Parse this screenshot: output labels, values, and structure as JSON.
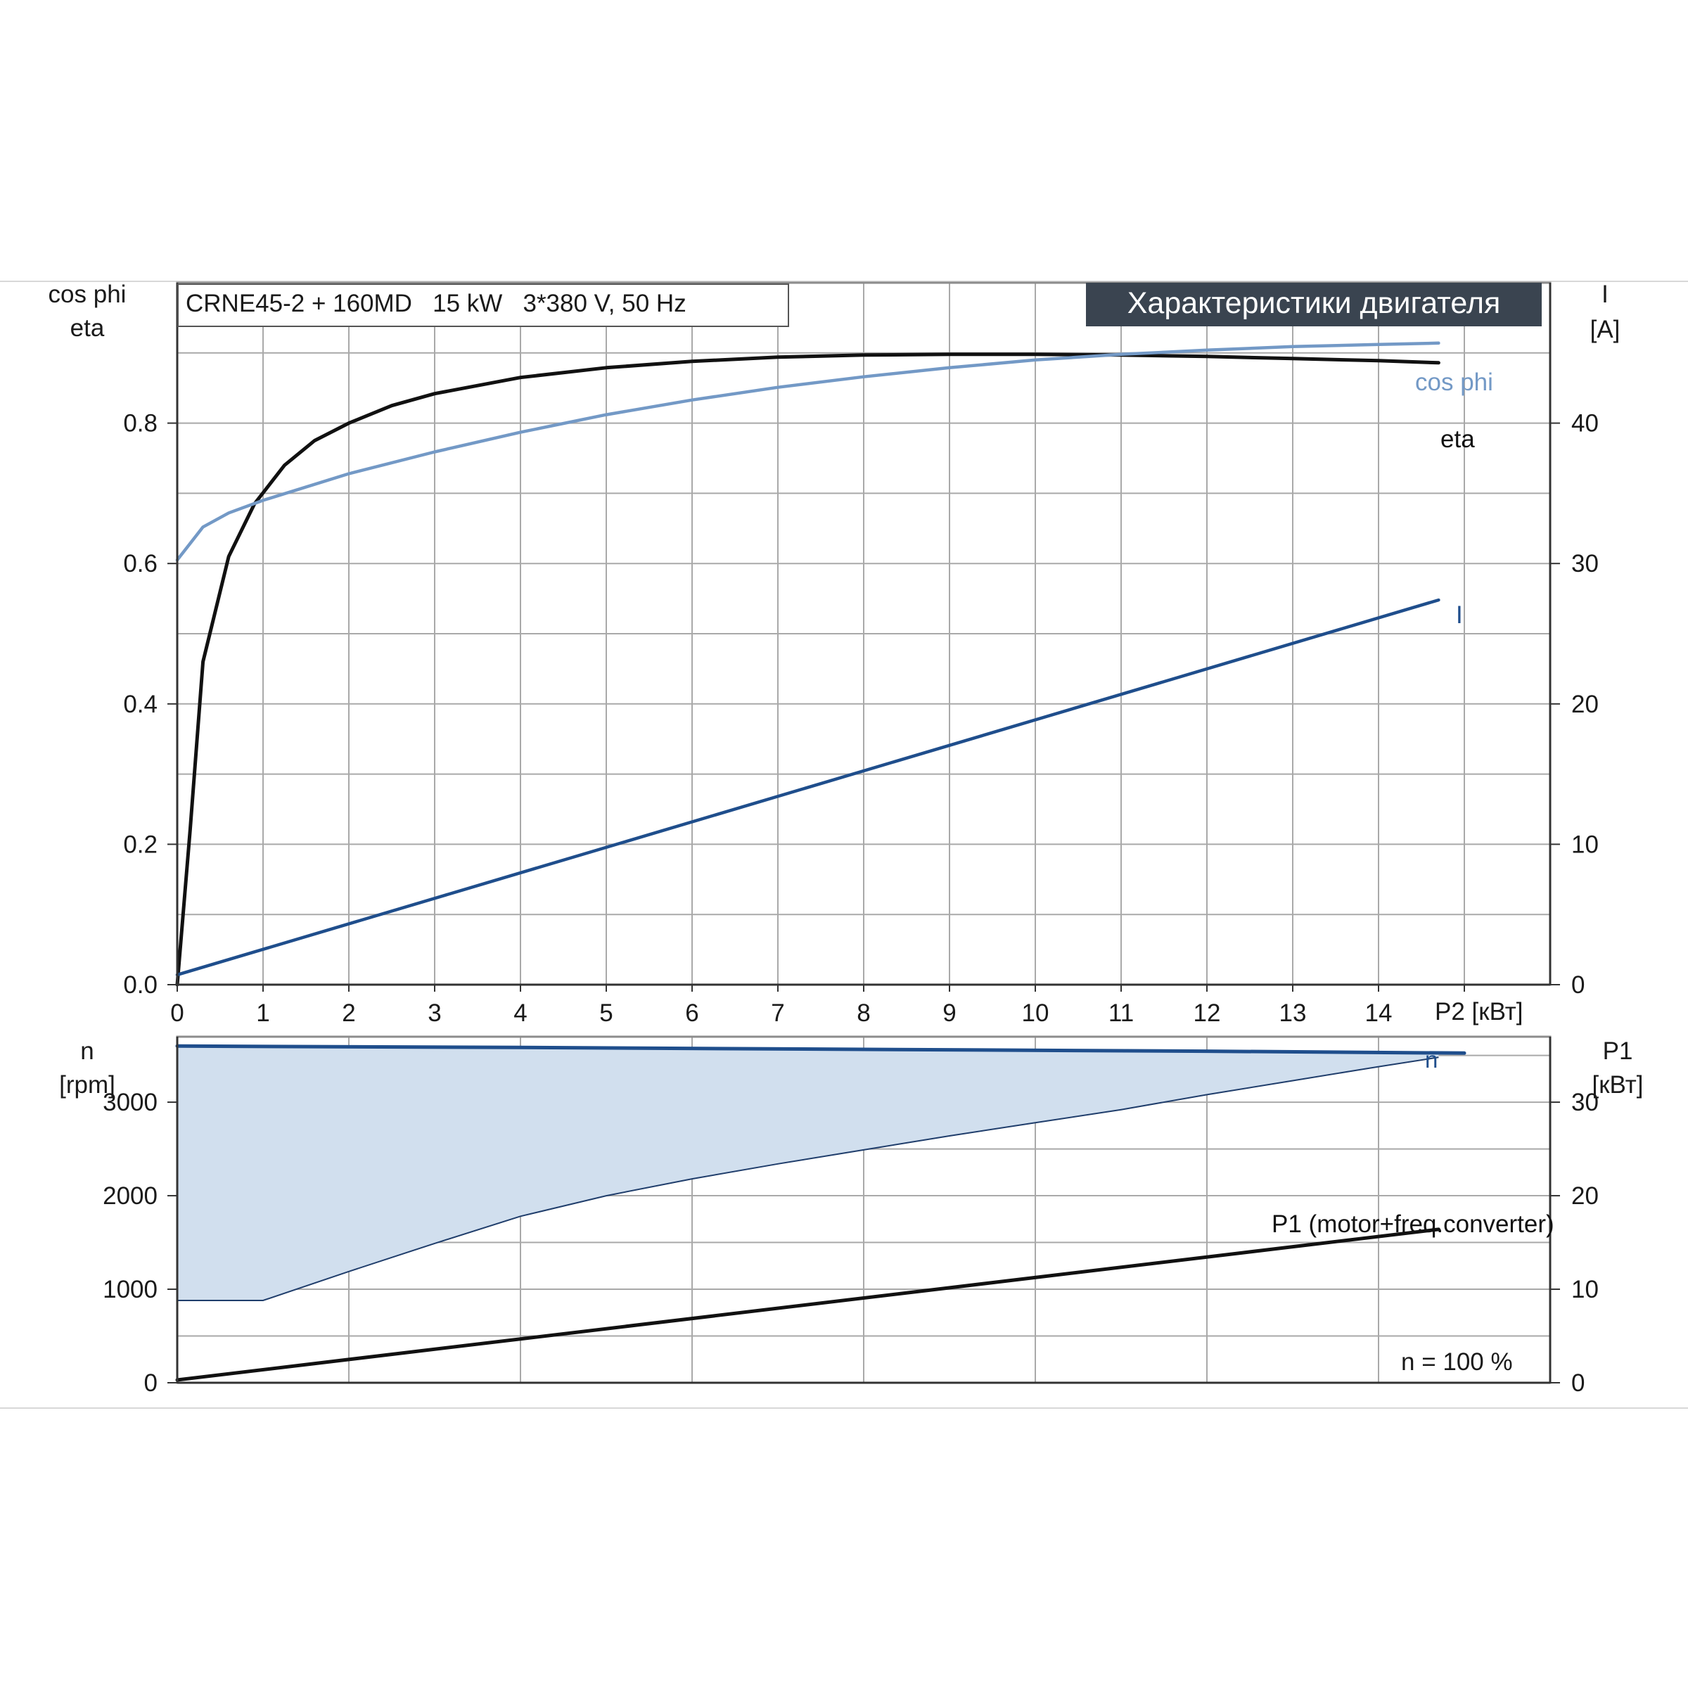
{
  "chart_data": [
    {
      "type": "line",
      "title": "CRNE45-2 + 160MD   15 kW   3*380 V, 50 Hz",
      "badge": "Характеристики двигателя",
      "xlabel": "P2 [кВт]",
      "ylabel_left": [
        "cos phi",
        "eta"
      ],
      "ylabel_right": [
        "I",
        "[A]"
      ],
      "xlim": [
        0,
        16
      ],
      "ylim_left": [
        0,
        1.0
      ],
      "ylim_right": [
        0,
        50
      ],
      "x_ticks": [
        "0",
        "1",
        "2",
        "3",
        "4",
        "5",
        "6",
        "7",
        "8",
        "9",
        "10",
        "11",
        "12",
        "13",
        "14"
      ],
      "y_ticks_left": [
        "0.0",
        "0.2",
        "0.4",
        "0.6",
        "0.8"
      ],
      "y_ticks_right": [
        "0",
        "10",
        "20",
        "30",
        "40"
      ],
      "grid": true,
      "series": [
        {
          "name": "eta",
          "axis": "left",
          "color": "#111111",
          "x": [
            0,
            0.15,
            0.3,
            0.6,
            0.9,
            1.25,
            1.6,
            2,
            2.5,
            3,
            4,
            5,
            6,
            7,
            8,
            9,
            10,
            11,
            12,
            13,
            14,
            14.7
          ],
          "y": [
            0.0,
            0.22,
            0.46,
            0.61,
            0.685,
            0.74,
            0.775,
            0.8,
            0.825,
            0.842,
            0.865,
            0.879,
            0.888,
            0.894,
            0.897,
            0.898,
            0.898,
            0.897,
            0.895,
            0.892,
            0.889,
            0.886
          ]
        },
        {
          "name": "cos phi",
          "axis": "left",
          "color": "#7399c6",
          "x": [
            0,
            0.3,
            0.6,
            1,
            2,
            3,
            4,
            5,
            6,
            7,
            8,
            9,
            10,
            11,
            12,
            13,
            14,
            14.7
          ],
          "y": [
            0.605,
            0.652,
            0.672,
            0.69,
            0.728,
            0.759,
            0.787,
            0.812,
            0.833,
            0.851,
            0.866,
            0.879,
            0.89,
            0.898,
            0.904,
            0.909,
            0.912,
            0.914
          ]
        },
        {
          "name": "I",
          "axis": "right",
          "color": "#1f4e8c",
          "x": [
            0,
            14.7
          ],
          "y": [
            0.7,
            27.4
          ]
        }
      ]
    },
    {
      "type": "area",
      "xlim": [
        0,
        16
      ],
      "ylabel_left": [
        "n",
        "[rpm]"
      ],
      "ylabel_right": [
        "P1",
        "[кВт]"
      ],
      "ylim_left": [
        0,
        3700
      ],
      "ylim_right": [
        0,
        37
      ],
      "y_ticks_left": [
        "0",
        "1000",
        "2000",
        "3000"
      ],
      "y_ticks_right": [
        "0",
        "10",
        "20",
        "30"
      ],
      "grid": true,
      "series": [
        {
          "name": "n",
          "axis": "left",
          "color": "#1f4e8c",
          "x": [
            0,
            4,
            8,
            12,
            15
          ],
          "y": [
            3600,
            3585,
            3565,
            3545,
            3525
          ]
        },
        {
          "name": "P1 (motor+freq.converter)",
          "axis": "right",
          "color": "#111111",
          "x": [
            0,
            14.7
          ],
          "y": [
            0.3,
            16.4
          ]
        }
      ],
      "band": {
        "color": "#d1dfee",
        "upper_x": [
          0,
          4,
          8,
          12,
          14.7
        ],
        "upper_y": [
          3600,
          3585,
          3565,
          3545,
          3525
        ],
        "lower_x": [
          0,
          1,
          2,
          3,
          4,
          5,
          6,
          7,
          8,
          9,
          10,
          11,
          12,
          13,
          14,
          14.7
        ],
        "lower_y": [
          880,
          880,
          1190,
          1490,
          1780,
          2000,
          2180,
          2340,
          2490,
          2640,
          2780,
          2920,
          3080,
          3230,
          3380,
          3480
        ]
      },
      "annotation": "n = 100 %"
    }
  ]
}
